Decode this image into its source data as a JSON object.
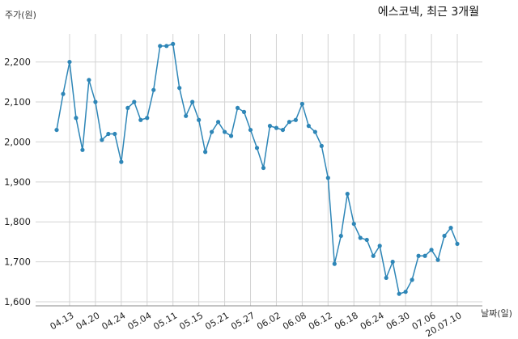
{
  "chart_data": {
    "type": "line",
    "title": "에스코넥, 최근 3개월",
    "ylabel": "주가(원)",
    "xlabel": "날짜(일)",
    "ylim": [
      1590,
      2270
    ],
    "y_ticks": [
      1600,
      1700,
      1800,
      1900,
      2000,
      2100,
      2200
    ],
    "y_tick_labels": [
      "1,600",
      "1,700",
      "1,800",
      "1,900",
      "2,000",
      "2,100",
      "2,200"
    ],
    "x_tick_labels": [
      "04.13",
      "04.20",
      "04.24",
      "05.04",
      "05.11",
      "05.15",
      "05.21",
      "05.27",
      "06.02",
      "06.08",
      "06.12",
      "06.18",
      "06.24",
      "06.30",
      "07.06",
      "20.07.10"
    ],
    "x_tick_indices": [
      2,
      6,
      10,
      14,
      18,
      22,
      26,
      30,
      34,
      38,
      42,
      46,
      50,
      54,
      58,
      62
    ],
    "grid": true,
    "color": "#2e86b7",
    "series": [
      {
        "values": [
          2030,
          2120,
          2200,
          2060,
          1980,
          2155,
          2100,
          2005,
          2020,
          2020,
          1950,
          2085,
          2100,
          2055,
          2060,
          2130,
          2240,
          2240,
          2245,
          2135,
          2065,
          2100,
          2055,
          1975,
          2025,
          2050,
          2025,
          2015,
          2085,
          2075,
          2030,
          1985,
          1935,
          2040,
          2035,
          2030,
          2050,
          2055,
          2095,
          2040,
          2025,
          1990,
          1910,
          1695,
          1765,
          1870,
          1795,
          1760,
          1755,
          1715,
          1740,
          1660,
          1700,
          1620,
          1625,
          1655,
          1715,
          1715,
          1730,
          1705,
          1765,
          1785,
          1745
        ]
      }
    ]
  }
}
